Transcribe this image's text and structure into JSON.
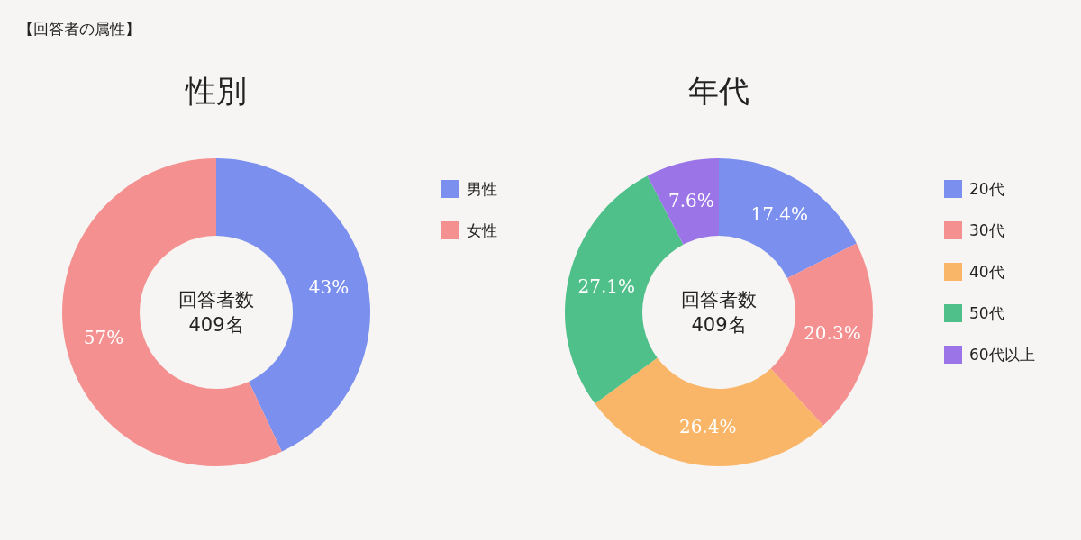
{
  "chart_data": [
    {
      "type": "donut",
      "title": "性別",
      "categories": [
        "男性",
        "女性"
      ],
      "values": [
        43,
        57
      ],
      "colors": [
        "#7b8fee",
        "#f59090"
      ],
      "value_labels": [
        "43%",
        "57%"
      ],
      "legend": "right",
      "annotations": [
        "【回答者の属性】",
        "回答者数",
        "409名"
      ]
    },
    {
      "type": "donut",
      "title": "年代",
      "categories": [
        "20代",
        "30代",
        "40代",
        "50代",
        "60代以上"
      ],
      "values": [
        17.4,
        20.3,
        26.4,
        27.1,
        7.6
      ],
      "colors": [
        "#7b8fee",
        "#f59090",
        "#fab668",
        "#4fc08a",
        "#9b74e8"
      ],
      "value_labels": [
        "17.4%",
        "20.3%",
        "26.4%",
        "27.1%",
        "7.6%"
      ],
      "legend": "right",
      "annotations": [
        "回答者数",
        "409名"
      ]
    }
  ]
}
